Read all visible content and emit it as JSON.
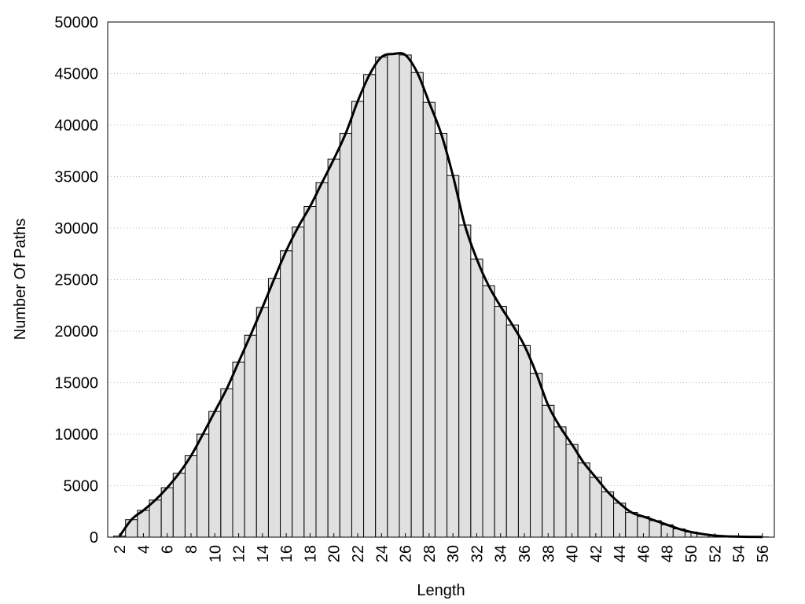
{
  "chart_data": {
    "type": "histogram",
    "x_label": "Length",
    "y_label": "Number Of Paths",
    "bins": [
      1.5,
      2.5,
      3.5,
      4.5,
      5.5,
      6.5,
      7.5,
      8.5,
      9.5,
      10.5,
      11.5,
      12.5,
      13.5,
      14.5,
      15.5,
      16.5,
      17.5,
      18.5,
      19.5,
      20.5,
      21.5,
      22.5,
      23.5,
      24.5,
      25.5,
      26.5,
      27.5,
      28.5,
      29.5,
      30.5,
      31.5,
      32.5,
      33.5,
      34.5,
      35.5,
      36.5,
      37.5,
      38.5,
      39.5,
      40.5,
      41.5,
      42.5,
      43.5,
      44.5,
      45.5,
      46.5,
      47.5,
      48.5,
      49.5,
      50.5,
      51.5,
      52.5,
      53.5,
      54.5,
      55.5,
      56.5
    ],
    "counts": [
      100,
      1700,
      2600,
      3600,
      4800,
      6200,
      7900,
      10000,
      12200,
      14400,
      17000,
      19600,
      22300,
      25100,
      27800,
      30100,
      32100,
      34400,
      36700,
      39200,
      42300,
      44900,
      46600,
      46900,
      46800,
      45100,
      42200,
      39200,
      35100,
      30300,
      27000,
      24400,
      22400,
      20600,
      18600,
      15900,
      12800,
      10700,
      9000,
      7200,
      5800,
      4400,
      3300,
      2400,
      2000,
      1600,
      1200,
      800,
      500,
      300,
      150,
      80,
      50,
      30,
      20
    ],
    "color": "#e0e0e0",
    "edge_color": "#000000",
    "curve_color": "#000000",
    "smooth_curve": true,
    "xlim": [
      1,
      57
    ],
    "xticks": [
      2,
      4,
      6,
      8,
      10,
      12,
      14,
      16,
      18,
      20,
      22,
      24,
      26,
      28,
      30,
      32,
      34,
      36,
      38,
      40,
      42,
      44,
      46,
      48,
      50,
      52,
      54,
      56
    ],
    "ylim": [
      0,
      50000
    ],
    "yticks": [
      0,
      5000,
      10000,
      15000,
      20000,
      25000,
      30000,
      35000,
      40000,
      45000,
      50000
    ],
    "grid": true
  }
}
